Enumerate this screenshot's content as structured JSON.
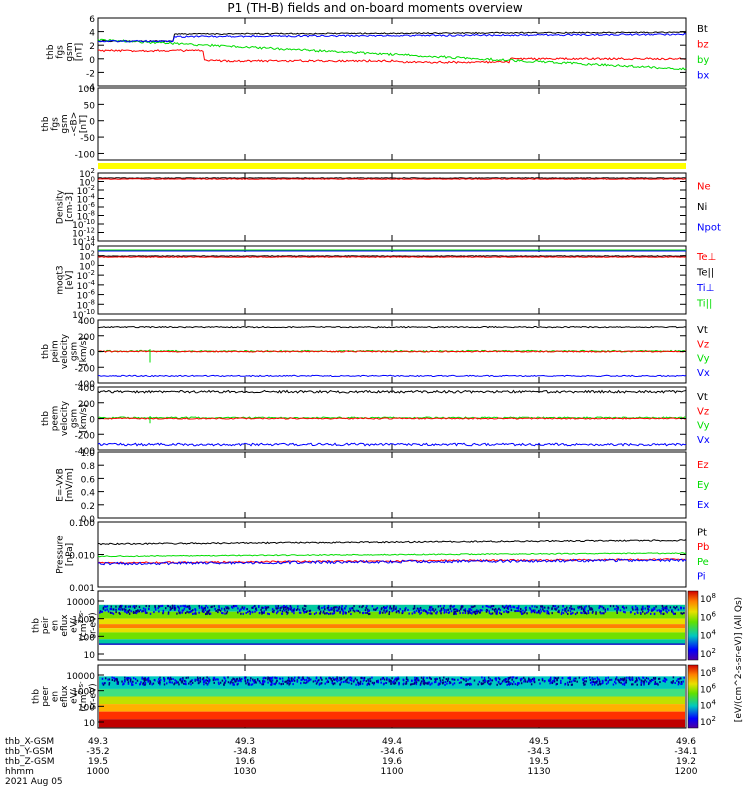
{
  "title": "P1 (TH-B) fields and on-board moments overview",
  "date": "2021 Aug 05",
  "colors": {
    "black": "#000000",
    "red": "#ff0000",
    "green": "#00dd00",
    "blue": "#0000ff",
    "yellow": "#ffff00"
  },
  "chart_data": [
    {
      "type": "line",
      "id": "fgs",
      "ylabel": [
        "thb",
        "fgs",
        "gsm",
        "[nT]"
      ],
      "yticks": [
        "6",
        "4",
        "2",
        "0",
        "-2",
        "-4"
      ],
      "ylim": [
        -4,
        6
      ],
      "series": [
        {
          "name": "Bt",
          "color": "#000000",
          "level": 3.6
        },
        {
          "name": "bz",
          "color": "#ff0000",
          "level": -0.3
        },
        {
          "name": "by",
          "color": "#00dd00",
          "level": 1.5
        },
        {
          "name": "bx",
          "color": "#0000ff",
          "level": 3.2
        }
      ]
    },
    {
      "type": "line",
      "id": "fgs-dsl",
      "ylabel": [
        "thb",
        "fgs",
        "gsm",
        "-<B>",
        "[nT]"
      ],
      "yticks": [
        "100",
        "50",
        "0",
        "-50",
        "-100"
      ],
      "ylim": [
        -120,
        100
      ],
      "series": []
    },
    {
      "type": "bar",
      "id": "mode-bar",
      "color": "#ffff00"
    },
    {
      "type": "line",
      "id": "density",
      "ylabel": [
        "Density",
        "[cm-3]"
      ],
      "yticks": [
        "10^2",
        "10^0",
        "10^-2",
        "10^-4",
        "10^-6",
        "10^-8",
        "10^-10",
        "10^-12",
        "10^-14"
      ],
      "series": [
        {
          "name": "Ne",
          "color": "#ff0000"
        },
        {
          "name": "Ni",
          "color": "#000000"
        },
        {
          "name": "Npot",
          "color": "#0000ff"
        }
      ]
    },
    {
      "type": "line",
      "id": "temp",
      "ylabel": [
        "moqt3",
        "[eV]"
      ],
      "yticks": [
        "10^4",
        "10^2",
        "10^0",
        "10^-2",
        "10^-4",
        "10^-6",
        "10^-8",
        "10^-10"
      ],
      "series": [
        {
          "name": "Te⊥",
          "color": "#ff0000"
        },
        {
          "name": "Te||",
          "color": "#000000"
        },
        {
          "name": "Ti⊥",
          "color": "#0000ff"
        },
        {
          "name": "Ti||",
          "color": "#00dd00"
        }
      ]
    },
    {
      "type": "line",
      "id": "peim",
      "ylabel": [
        "thb",
        "peim",
        "velocity",
        "gsm",
        "[km/s]"
      ],
      "yticks": [
        "400",
        "200",
        "0",
        "-200",
        "-400"
      ],
      "ylim": [
        -400,
        400
      ],
      "series": [
        {
          "name": "Vt",
          "color": "#000000",
          "level": 310
        },
        {
          "name": "Vz",
          "color": "#ff0000",
          "level": 0
        },
        {
          "name": "Vy",
          "color": "#00dd00",
          "level": 5
        },
        {
          "name": "Vx",
          "color": "#0000ff",
          "level": -310
        }
      ]
    },
    {
      "type": "line",
      "id": "peem",
      "ylabel": [
        "thb",
        "peem",
        "velocity",
        "gsm",
        "[km/s]"
      ],
      "yticks": [
        "400",
        "200",
        "0",
        "-200",
        "-400"
      ],
      "ylim": [
        -400,
        400
      ],
      "series": [
        {
          "name": "Vt",
          "color": "#000000",
          "level": 340
        },
        {
          "name": "Vz",
          "color": "#ff0000",
          "level": 0
        },
        {
          "name": "Vy",
          "color": "#00dd00",
          "level": 10
        },
        {
          "name": "Vx",
          "color": "#0000ff",
          "level": -330
        }
      ]
    },
    {
      "type": "line",
      "id": "efield",
      "ylabel": [
        "E=-VxB",
        "[mV/m]"
      ],
      "yticks": [
        "1.0",
        "0.8",
        "0.6",
        "0.4",
        "0.2",
        "0.0"
      ],
      "ylim": [
        0,
        1
      ],
      "series": [
        {
          "name": "Ez",
          "color": "#ff0000"
        },
        {
          "name": "Ey",
          "color": "#00dd00"
        },
        {
          "name": "Ex",
          "color": "#0000ff"
        }
      ]
    },
    {
      "type": "line",
      "id": "pressure",
      "scale": "log",
      "ylabel": [
        "Pressure",
        "[nPa]"
      ],
      "yticks": [
        "0.100",
        "0.010",
        "0.001"
      ],
      "ylim": [
        0.001,
        0.1
      ],
      "series": [
        {
          "name": "Pt",
          "color": "#000000",
          "level": 0.022
        },
        {
          "name": "Pb",
          "color": "#ff0000",
          "level": 0.006
        },
        {
          "name": "Pe",
          "color": "#00dd00",
          "level": 0.009
        },
        {
          "name": "Pi",
          "color": "#0000ff",
          "level": 0.0055
        }
      ]
    },
    {
      "type": "heatmap",
      "id": "peir",
      "ylabel": [
        "thb",
        "peir",
        "en",
        "eflux",
        "eV/",
        "(cm^2-s-",
        "sr-eV)"
      ],
      "yticks": [
        "10000",
        "1000",
        "100",
        "10"
      ]
    },
    {
      "type": "heatmap",
      "id": "peer",
      "ylabel": [
        "thb",
        "peer",
        "en",
        "eflux",
        "eV/",
        "(cm^2-s-",
        "sr-eV)"
      ],
      "yticks": [
        "10000",
        "1000",
        "100",
        "10"
      ]
    }
  ],
  "colorbar": {
    "ticks": [
      "10^8",
      "10^6",
      "10^4",
      "10^2",
      "10^8",
      "10^6",
      "10^4",
      "10^2"
    ],
    "label": "[eV/(cm^2-s-sr-eV)] (All Qs)"
  },
  "xaxis": {
    "rows": [
      {
        "label": "thb_X-GSM",
        "values": [
          "49.3",
          "49.3",
          "49.4",
          "49.5",
          "49.6"
        ]
      },
      {
        "label": "thb_Y-GSM",
        "values": [
          "-35.2",
          "-34.8",
          "-34.6",
          "-34.3",
          "-34.1"
        ]
      },
      {
        "label": "thb_Z-GSM",
        "values": [
          "19.5",
          "19.6",
          "19.6",
          "19.5",
          "19.2"
        ]
      },
      {
        "label": "hhmm",
        "values": [
          "1000",
          "1030",
          "1100",
          "1130",
          "1200"
        ]
      }
    ]
  }
}
